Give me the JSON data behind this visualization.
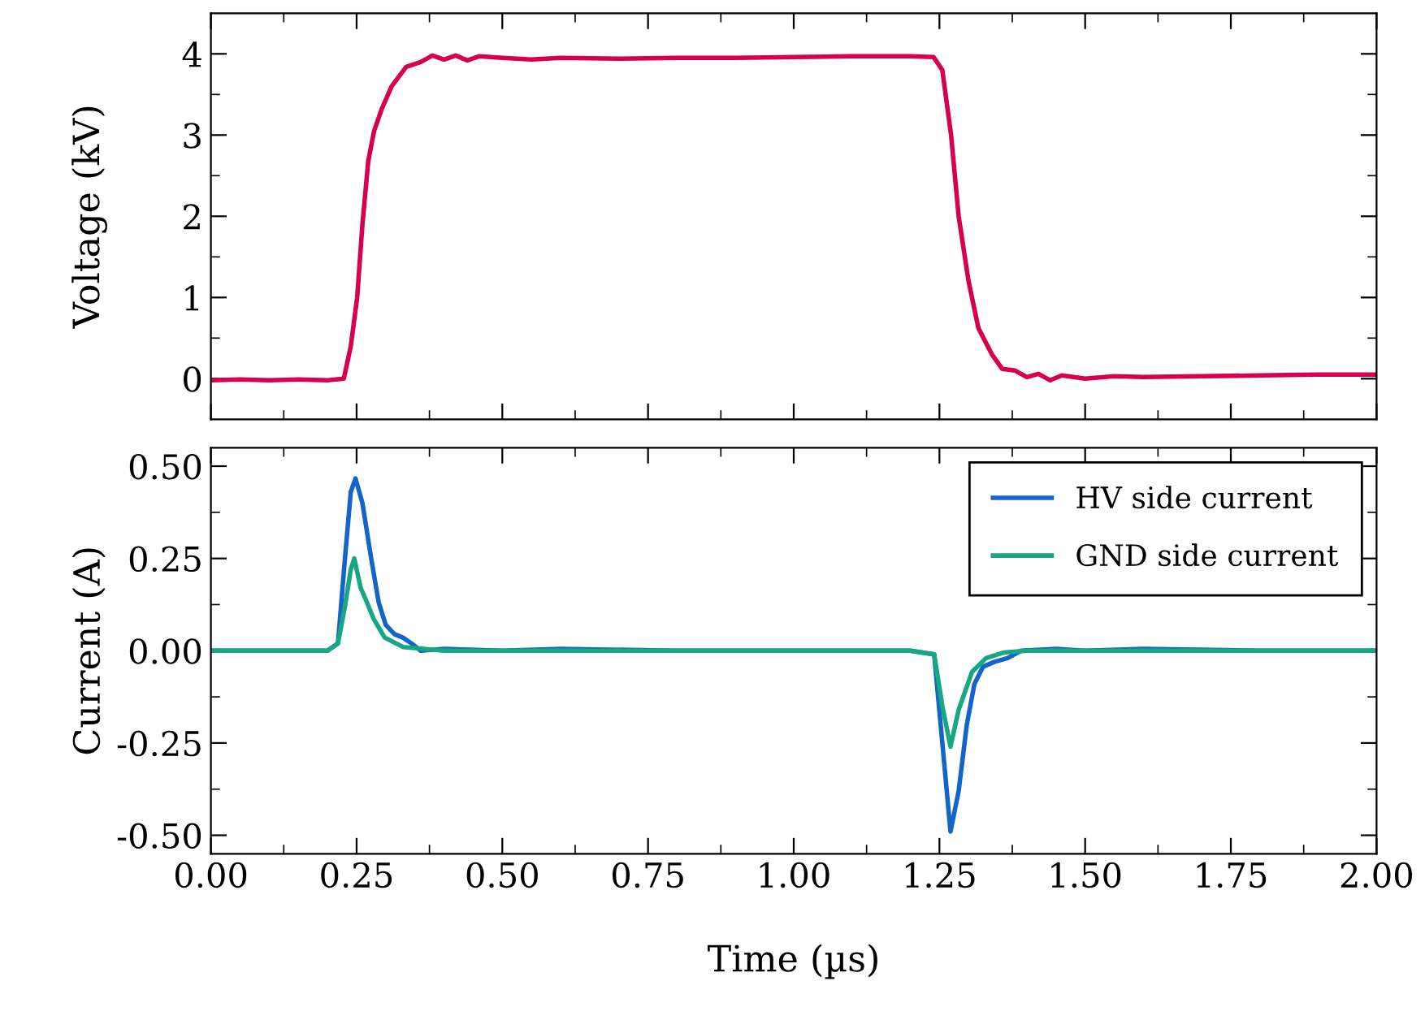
{
  "chart_data": [
    {
      "type": "line",
      "ylabel": "Voltage (kV)",
      "tick_labels": "y",
      "xlim": [
        0,
        2
      ],
      "ylim": [
        -0.5,
        4.5
      ],
      "xticks": [
        0,
        {
          "value": 0.125,
          "label": null
        },
        0.25,
        {
          "value": 0.375,
          "label": null
        },
        0.5,
        {
          "value": 0.625,
          "label": null
        },
        0.75,
        {
          "value": 0.875,
          "label": null
        },
        1,
        {
          "value": 1.125,
          "label": null
        },
        1.25,
        {
          "value": 1.375,
          "label": null
        },
        1.5,
        {
          "value": 1.625,
          "label": null
        },
        1.75,
        {
          "value": 1.875,
          "label": null
        },
        2
      ],
      "yticks": [
        0,
        {
          "value": 0.5,
          "label": null
        },
        1,
        {
          "value": 1.5,
          "label": null
        },
        2,
        {
          "value": 2.5,
          "label": null
        },
        3,
        {
          "value": 3.5,
          "label": null
        },
        4
      ],
      "grid": false,
      "legend": false,
      "series": [
        {
          "color": "#d6004f",
          "x": [
            0,
            0.05,
            0.1,
            0.15,
            0.2,
            0.228,
            0.24,
            0.251,
            0.26,
            0.27,
            0.28,
            0.293,
            0.31,
            0.335,
            0.36,
            0.38,
            0.4,
            0.42,
            0.44,
            0.46,
            0.5,
            0.55,
            0.6,
            0.7,
            0.8,
            0.9,
            1.0,
            1.1,
            1.2,
            1.24,
            1.255,
            1.27,
            1.283,
            1.3,
            1.317,
            1.34,
            1.358,
            1.38,
            1.4,
            1.42,
            1.44,
            1.46,
            1.5,
            1.55,
            1.6,
            1.7,
            1.8,
            1.9,
            2.0
          ],
          "values": [
            -0.02,
            -0.01,
            -0.02,
            -0.01,
            -0.02,
            0,
            0.4,
            1.0,
            1.9,
            2.68,
            3.05,
            3.32,
            3.6,
            3.84,
            3.9,
            3.98,
            3.93,
            3.98,
            3.92,
            3.97,
            3.95,
            3.93,
            3.95,
            3.94,
            3.95,
            3.95,
            3.96,
            3.97,
            3.97,
            3.96,
            3.8,
            3.0,
            2.0,
            1.2,
            0.62,
            0.3,
            0.12,
            0.1,
            0.02,
            0.06,
            -0.02,
            0.04,
            0.0,
            0.03,
            0.02,
            0.03,
            0.04,
            0.05,
            0.05
          ]
        }
      ]
    },
    {
      "type": "line",
      "xlabel": "Time (µs)",
      "ylabel": "Current (A)",
      "xlim": [
        0,
        2
      ],
      "ylim": [
        -0.55,
        0.55
      ],
      "xticks": [
        {
          "value": 0,
          "label": "0.00"
        },
        {
          "value": 0.125,
          "label": null
        },
        {
          "value": 0.25,
          "label": "0.25"
        },
        {
          "value": 0.375,
          "label": null
        },
        {
          "value": 0.5,
          "label": "0.50"
        },
        {
          "value": 0.625,
          "label": null
        },
        {
          "value": 0.75,
          "label": "0.75"
        },
        {
          "value": 0.875,
          "label": null
        },
        {
          "value": 1,
          "label": "1.00"
        },
        {
          "value": 1.125,
          "label": null
        },
        {
          "value": 1.25,
          "label": "1.25"
        },
        {
          "value": 1.375,
          "label": null
        },
        {
          "value": 1.5,
          "label": "1.50"
        },
        {
          "value": 1.625,
          "label": null
        },
        {
          "value": 1.75,
          "label": "1.75"
        },
        {
          "value": 1.875,
          "label": null
        },
        {
          "value": 2,
          "label": "2.00"
        }
      ],
      "yticks": [
        {
          "value": -0.5,
          "label": "-0.50"
        },
        {
          "value": -0.375,
          "label": null
        },
        {
          "value": -0.25,
          "label": "-0.25"
        },
        {
          "value": -0.125,
          "label": null
        },
        {
          "value": 0,
          "label": "0.00"
        },
        {
          "value": 0.125,
          "label": null
        },
        {
          "value": 0.25,
          "label": "0.25"
        },
        {
          "value": 0.375,
          "label": null
        },
        {
          "value": 0.5,
          "label": "0.50"
        }
      ],
      "grid": false,
      "legend": "top right",
      "series": [
        {
          "name": "HV side current",
          "color": "#1565c8",
          "x": [
            0,
            0.1,
            0.2,
            0.218,
            0.23,
            0.24,
            0.248,
            0.26,
            0.275,
            0.288,
            0.3,
            0.315,
            0.33,
            0.344,
            0.36,
            0.4,
            0.5,
            0.6,
            0.8,
            1.0,
            1.2,
            1.241,
            1.255,
            1.269,
            1.283,
            1.297,
            1.31,
            1.325,
            1.345,
            1.367,
            1.39,
            1.45,
            1.5,
            1.6,
            1.8,
            2.0
          ],
          "values": [
            0,
            0,
            0,
            0.02,
            0.25,
            0.43,
            0.467,
            0.4,
            0.25,
            0.13,
            0.07,
            0.045,
            0.035,
            0.02,
            0.0,
            0.005,
            0.0,
            0.005,
            0.0,
            0.0,
            0.0,
            -0.01,
            -0.25,
            -0.49,
            -0.38,
            -0.2,
            -0.09,
            -0.043,
            -0.03,
            -0.02,
            0,
            0.005,
            0,
            0.005,
            0,
            0
          ]
        },
        {
          "name": "GND side current",
          "color": "#17a783",
          "x": [
            0,
            0.1,
            0.2,
            0.218,
            0.23,
            0.24,
            0.246,
            0.257,
            0.268,
            0.279,
            0.298,
            0.33,
            0.4,
            0.6,
            0.8,
            1.0,
            1.2,
            1.241,
            1.255,
            1.269,
            1.283,
            1.306,
            1.33,
            1.36,
            1.4,
            1.6,
            1.8,
            2.0
          ],
          "values": [
            0,
            0,
            0,
            0.02,
            0.12,
            0.22,
            0.25,
            0.17,
            0.13,
            0.087,
            0.036,
            0.01,
            0,
            0,
            0,
            0,
            0,
            -0.01,
            -0.15,
            -0.26,
            -0.16,
            -0.057,
            -0.02,
            -0.005,
            0,
            0,
            0,
            0
          ]
        }
      ]
    }
  ]
}
